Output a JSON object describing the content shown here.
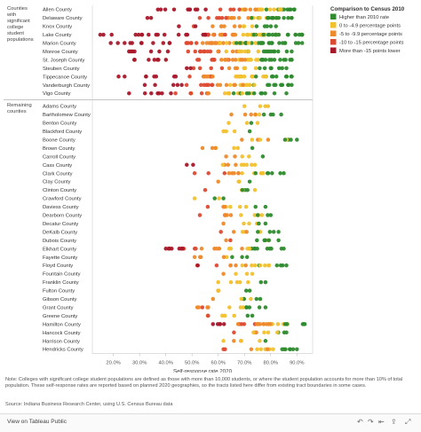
{
  "chart_data": {
    "type": "scatter",
    "xlabel": "Self-response rate 2020",
    "xticks": [
      "20.0%",
      "30.0%",
      "40.0%",
      "50.0%",
      "60.0%",
      "70.0%",
      "80.0%",
      "90.0%"
    ],
    "xlim": [
      12,
      96
    ],
    "groups": [
      {
        "name": "Counties with significant college student populations",
        "counties": [
          "Allen County",
          "Delaware County",
          "Knox County",
          "Lake County",
          "Marion County",
          "Monroe County",
          "St. Joseph County",
          "Steuben County",
          "Tippecanoe County",
          "Vanderburgh County",
          "Vigo County"
        ]
      },
      {
        "name": "Remaining counties",
        "counties": [
          "Adams County",
          "Bartholomew County",
          "Benton County",
          "Blackford County",
          "Boone County",
          "Brown County",
          "Carroll County",
          "Cass County",
          "Clark County",
          "Clay County",
          "Clinton County",
          "Crawford County",
          "Daviess County",
          "Dearborn County",
          "Decatur County",
          "DeKalb County",
          "Dubois County",
          "Elkhart County",
          "Fayette County",
          "Floyd County",
          "Fountain County",
          "Franklin County",
          "Fulton County",
          "Gibson County",
          "Grant County",
          "Greene County",
          "Hamilton County",
          "Hancock County",
          "Harrison County",
          "Hendricks County"
        ]
      }
    ],
    "legend": {
      "title": "Comparison to Census 2010",
      "placement": "top-right",
      "items": [
        {
          "label": "Higher than 2010 rate",
          "color": "#2e8b2e"
        },
        {
          "label": "0 to -4.9 percentage points",
          "color": "#f2c12e"
        },
        {
          "label": "-5 to -9.9 percentage points",
          "color": "#ee8a2c"
        },
        {
          "label": "-10 to -15 percentage points",
          "color": "#dd4a32"
        },
        {
          "label": "More than -15 points lower",
          "color": "#a8182a"
        }
      ]
    },
    "series": [
      {
        "county": "Allen County",
        "min": 37,
        "max": 89,
        "peak": 78,
        "w": 0.9
      },
      {
        "county": "Delaware County",
        "min": 33,
        "max": 88,
        "peak": 74,
        "w": 0.6
      },
      {
        "county": "Knox County",
        "min": 45,
        "max": 82,
        "peak": 70,
        "w": 0.3
      },
      {
        "county": "Lake County",
        "min": 15,
        "max": 92,
        "peak": 74,
        "w": 1.0
      },
      {
        "county": "Marion County",
        "min": 19,
        "max": 92,
        "peak": 66,
        "w": 1.0
      },
      {
        "county": "Monroe County",
        "min": 26,
        "max": 88,
        "peak": 70,
        "w": 0.5
      },
      {
        "county": "St. Joseph County",
        "min": 28,
        "max": 88,
        "peak": 74,
        "w": 0.8
      },
      {
        "county": "Steuben County",
        "min": 48,
        "max": 86,
        "peak": 72,
        "w": 0.35
      },
      {
        "county": "Tippecanoe County",
        "min": 22,
        "max": 88,
        "peak": 72,
        "w": 0.6
      },
      {
        "county": "Vanderburgh County",
        "min": 32,
        "max": 88,
        "peak": 72,
        "w": 0.7
      },
      {
        "county": "Vigo County",
        "min": 26,
        "max": 86,
        "peak": 66,
        "w": 0.45
      },
      {
        "county": "Adams County",
        "min": 70,
        "max": 79,
        "peak": 75,
        "w": 0.15
      },
      {
        "county": "Bartholomew County",
        "min": 65,
        "max": 84,
        "peak": 76,
        "w": 0.35
      },
      {
        "county": "Benton County",
        "min": 64,
        "max": 75,
        "peak": 70,
        "w": 0.08
      },
      {
        "county": "Blackford County",
        "min": 62,
        "max": 72,
        "peak": 66,
        "w": 0.12
      },
      {
        "county": "Boone County",
        "min": 69,
        "max": 90,
        "peak": 80,
        "w": 0.3
      },
      {
        "county": "Brown County",
        "min": 54,
        "max": 73,
        "peak": 64,
        "w": 0.12
      },
      {
        "county": "Carroll County",
        "min": 63,
        "max": 77,
        "peak": 70,
        "w": 0.12
      },
      {
        "county": "Cass County",
        "min": 48,
        "max": 74,
        "peak": 68,
        "w": 0.2
      },
      {
        "county": "Clark County",
        "min": 51,
        "max": 85,
        "peak": 72,
        "w": 0.45
      },
      {
        "county": "Clay County",
        "min": 60,
        "max": 72,
        "peak": 66,
        "w": 0.12
      },
      {
        "county": "Clinton County",
        "min": 55,
        "max": 74,
        "peak": 67,
        "w": 0.15
      },
      {
        "county": "Crawford County",
        "min": 51,
        "max": 62,
        "peak": 56,
        "w": 0.08
      },
      {
        "county": "Daviess County",
        "min": 56,
        "max": 78,
        "peak": 68,
        "w": 0.18
      },
      {
        "county": "Dearborn County",
        "min": 53,
        "max": 80,
        "peak": 72,
        "w": 0.3
      },
      {
        "county": "Decatur County",
        "min": 62,
        "max": 78,
        "peak": 70,
        "w": 0.15
      },
      {
        "county": "DeKalb County",
        "min": 61,
        "max": 83,
        "peak": 74,
        "w": 0.25
      },
      {
        "county": "Dubois County",
        "min": 63,
        "max": 83,
        "peak": 75,
        "w": 0.22
      },
      {
        "county": "Elkhart County",
        "min": 40,
        "max": 85,
        "peak": 70,
        "w": 0.6
      },
      {
        "county": "Fayette County",
        "min": 51,
        "max": 71,
        "peak": 64,
        "w": 0.18
      },
      {
        "county": "Floyd County",
        "min": 52,
        "max": 86,
        "peak": 74,
        "w": 0.45
      },
      {
        "county": "Fountain County",
        "min": 62,
        "max": 73,
        "peak": 68,
        "w": 0.12
      },
      {
        "county": "Franklin County",
        "min": 60,
        "max": 78,
        "peak": 68,
        "w": 0.15
      },
      {
        "county": "Fulton County",
        "min": 60,
        "max": 72,
        "peak": 66,
        "w": 0.12
      },
      {
        "county": "Gibson County",
        "min": 58,
        "max": 76,
        "peak": 68,
        "w": 0.15
      },
      {
        "county": "Grant County",
        "min": 52,
        "max": 78,
        "peak": 66,
        "w": 0.35
      },
      {
        "county": "Greene County",
        "min": 56,
        "max": 73,
        "peak": 66,
        "w": 0.18
      },
      {
        "county": "Hamilton County",
        "min": 58,
        "max": 93,
        "peak": 84,
        "w": 0.9
      },
      {
        "county": "Hancock County",
        "min": 66,
        "max": 86,
        "peak": 78,
        "w": 0.35
      },
      {
        "county": "Harrison County",
        "min": 62,
        "max": 78,
        "peak": 70,
        "w": 0.18
      },
      {
        "county": "Hendricks County",
        "min": 62,
        "max": 90,
        "peak": 80,
        "w": 0.55
      }
    ]
  },
  "note": "Note: Colleges with significant college student populations are defined as those with more than 10,000 students, or where the student population accounts for more than 10% of total population. These self-response rates are reported based on planned 2020 geographies, so the tracts listed here differ from existing tract boundaries in some cases.",
  "source": "Source: Indiana Business Research Center, using U.S. Census Bureau data",
  "footer": {
    "view_on": "View on Tableau Public"
  }
}
